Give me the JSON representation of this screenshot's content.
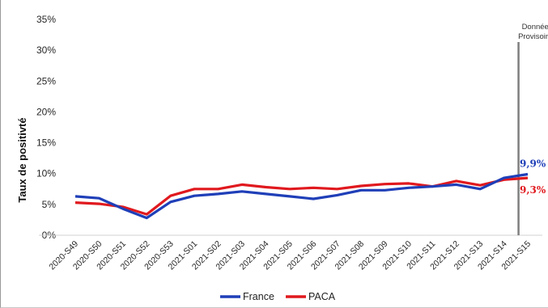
{
  "chart_data": {
    "type": "line",
    "ylabel": "Taux de positivté",
    "ylim": [
      0,
      35
    ],
    "yticks": [
      "0%",
      "5%",
      "10%",
      "15%",
      "20%",
      "25%",
      "30%",
      "35%"
    ],
    "categories": [
      "2020-S49",
      "2020-S50",
      "2020-S51",
      "2020-S52",
      "2020-S53",
      "2021-S01",
      "2021-S02",
      "2021-S03",
      "2021-S04",
      "2021-S05",
      "2021-S06",
      "2021-S07",
      "2021-S08",
      "2021-S09",
      "2021-S10",
      "2021-S11",
      "2021-S12",
      "2021-S13",
      "2021-S14",
      "2021-S15"
    ],
    "series": [
      {
        "name": "France",
        "color": "#1f3fb8",
        "values": [
          6.3,
          6.0,
          4.3,
          2.8,
          5.4,
          6.4,
          6.7,
          7.1,
          6.7,
          6.3,
          5.9,
          6.5,
          7.3,
          7.3,
          7.7,
          7.9,
          8.2,
          7.5,
          9.3,
          9.9
        ]
      },
      {
        "name": "PACA",
        "color": "#e0191e",
        "values": [
          5.3,
          5.1,
          4.6,
          3.4,
          6.4,
          7.5,
          7.5,
          8.2,
          7.8,
          7.5,
          7.7,
          7.5,
          8.0,
          8.3,
          8.4,
          7.9,
          8.8,
          8.1,
          9.0,
          9.3
        ]
      }
    ],
    "data_labels": [
      {
        "series": "France",
        "text": "9,9%",
        "color": "#1f3fb8"
      },
      {
        "series": "PACA",
        "text": "9,3%",
        "color": "#e0191e"
      }
    ],
    "annotation": {
      "lines": [
        "Données",
        "Provisoires"
      ],
      "after_category": "2021-S14"
    },
    "grid": false,
    "legend_position": "bottom"
  }
}
